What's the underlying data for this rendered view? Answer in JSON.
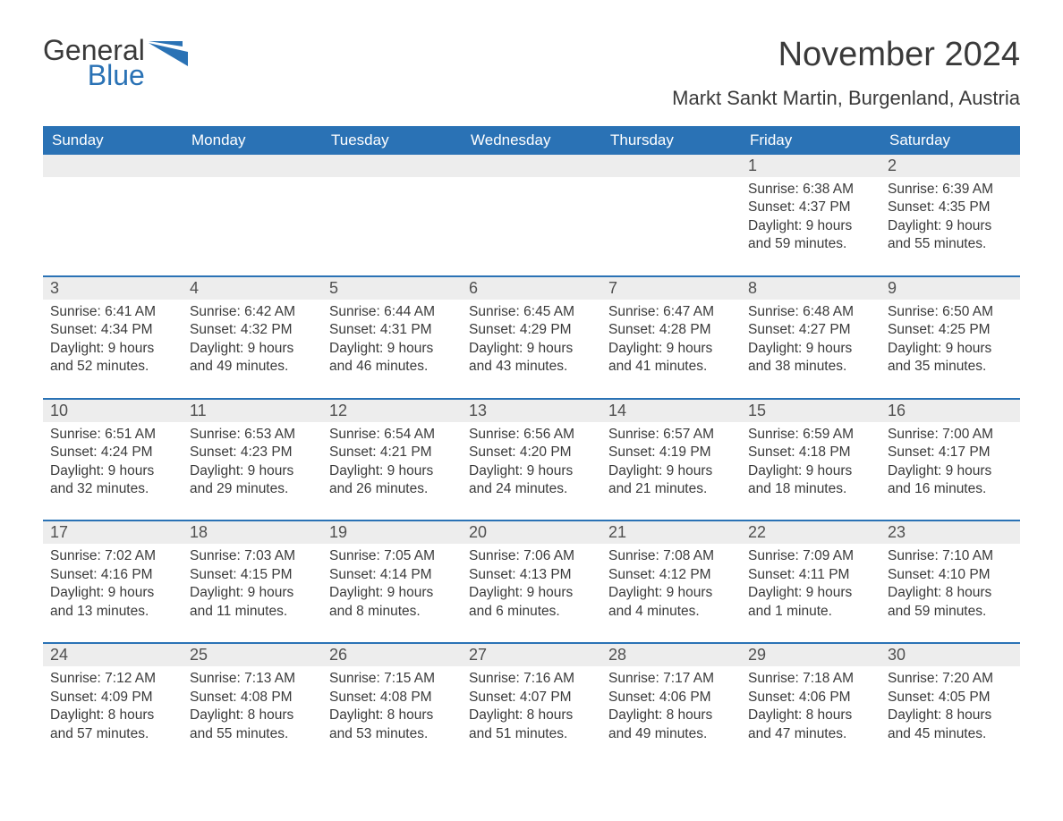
{
  "logo": {
    "text1": "General",
    "text2": "Blue",
    "accent_color": "#2a72b5"
  },
  "title": "November 2024",
  "location": "Markt Sankt Martin, Burgenland, Austria",
  "colors": {
    "header_bg": "#2a72b5",
    "header_text": "#ffffff",
    "daynum_bg": "#ededed",
    "border": "#2a72b5",
    "body_text": "#3a3a3a"
  },
  "weekdays": [
    "Sunday",
    "Monday",
    "Tuesday",
    "Wednesday",
    "Thursday",
    "Friday",
    "Saturday"
  ],
  "weeks": [
    [
      null,
      null,
      null,
      null,
      null,
      {
        "n": "1",
        "sunrise": "Sunrise: 6:38 AM",
        "sunset": "Sunset: 4:37 PM",
        "d1": "Daylight: 9 hours",
        "d2": "and 59 minutes."
      },
      {
        "n": "2",
        "sunrise": "Sunrise: 6:39 AM",
        "sunset": "Sunset: 4:35 PM",
        "d1": "Daylight: 9 hours",
        "d2": "and 55 minutes."
      }
    ],
    [
      {
        "n": "3",
        "sunrise": "Sunrise: 6:41 AM",
        "sunset": "Sunset: 4:34 PM",
        "d1": "Daylight: 9 hours",
        "d2": "and 52 minutes."
      },
      {
        "n": "4",
        "sunrise": "Sunrise: 6:42 AM",
        "sunset": "Sunset: 4:32 PM",
        "d1": "Daylight: 9 hours",
        "d2": "and 49 minutes."
      },
      {
        "n": "5",
        "sunrise": "Sunrise: 6:44 AM",
        "sunset": "Sunset: 4:31 PM",
        "d1": "Daylight: 9 hours",
        "d2": "and 46 minutes."
      },
      {
        "n": "6",
        "sunrise": "Sunrise: 6:45 AM",
        "sunset": "Sunset: 4:29 PM",
        "d1": "Daylight: 9 hours",
        "d2": "and 43 minutes."
      },
      {
        "n": "7",
        "sunrise": "Sunrise: 6:47 AM",
        "sunset": "Sunset: 4:28 PM",
        "d1": "Daylight: 9 hours",
        "d2": "and 41 minutes."
      },
      {
        "n": "8",
        "sunrise": "Sunrise: 6:48 AM",
        "sunset": "Sunset: 4:27 PM",
        "d1": "Daylight: 9 hours",
        "d2": "and 38 minutes."
      },
      {
        "n": "9",
        "sunrise": "Sunrise: 6:50 AM",
        "sunset": "Sunset: 4:25 PM",
        "d1": "Daylight: 9 hours",
        "d2": "and 35 minutes."
      }
    ],
    [
      {
        "n": "10",
        "sunrise": "Sunrise: 6:51 AM",
        "sunset": "Sunset: 4:24 PM",
        "d1": "Daylight: 9 hours",
        "d2": "and 32 minutes."
      },
      {
        "n": "11",
        "sunrise": "Sunrise: 6:53 AM",
        "sunset": "Sunset: 4:23 PM",
        "d1": "Daylight: 9 hours",
        "d2": "and 29 minutes."
      },
      {
        "n": "12",
        "sunrise": "Sunrise: 6:54 AM",
        "sunset": "Sunset: 4:21 PM",
        "d1": "Daylight: 9 hours",
        "d2": "and 26 minutes."
      },
      {
        "n": "13",
        "sunrise": "Sunrise: 6:56 AM",
        "sunset": "Sunset: 4:20 PM",
        "d1": "Daylight: 9 hours",
        "d2": "and 24 minutes."
      },
      {
        "n": "14",
        "sunrise": "Sunrise: 6:57 AM",
        "sunset": "Sunset: 4:19 PM",
        "d1": "Daylight: 9 hours",
        "d2": "and 21 minutes."
      },
      {
        "n": "15",
        "sunrise": "Sunrise: 6:59 AM",
        "sunset": "Sunset: 4:18 PM",
        "d1": "Daylight: 9 hours",
        "d2": "and 18 minutes."
      },
      {
        "n": "16",
        "sunrise": "Sunrise: 7:00 AM",
        "sunset": "Sunset: 4:17 PM",
        "d1": "Daylight: 9 hours",
        "d2": "and 16 minutes."
      }
    ],
    [
      {
        "n": "17",
        "sunrise": "Sunrise: 7:02 AM",
        "sunset": "Sunset: 4:16 PM",
        "d1": "Daylight: 9 hours",
        "d2": "and 13 minutes."
      },
      {
        "n": "18",
        "sunrise": "Sunrise: 7:03 AM",
        "sunset": "Sunset: 4:15 PM",
        "d1": "Daylight: 9 hours",
        "d2": "and 11 minutes."
      },
      {
        "n": "19",
        "sunrise": "Sunrise: 7:05 AM",
        "sunset": "Sunset: 4:14 PM",
        "d1": "Daylight: 9 hours",
        "d2": "and 8 minutes."
      },
      {
        "n": "20",
        "sunrise": "Sunrise: 7:06 AM",
        "sunset": "Sunset: 4:13 PM",
        "d1": "Daylight: 9 hours",
        "d2": "and 6 minutes."
      },
      {
        "n": "21",
        "sunrise": "Sunrise: 7:08 AM",
        "sunset": "Sunset: 4:12 PM",
        "d1": "Daylight: 9 hours",
        "d2": "and 4 minutes."
      },
      {
        "n": "22",
        "sunrise": "Sunrise: 7:09 AM",
        "sunset": "Sunset: 4:11 PM",
        "d1": "Daylight: 9 hours",
        "d2": "and 1 minute."
      },
      {
        "n": "23",
        "sunrise": "Sunrise: 7:10 AM",
        "sunset": "Sunset: 4:10 PM",
        "d1": "Daylight: 8 hours",
        "d2": "and 59 minutes."
      }
    ],
    [
      {
        "n": "24",
        "sunrise": "Sunrise: 7:12 AM",
        "sunset": "Sunset: 4:09 PM",
        "d1": "Daylight: 8 hours",
        "d2": "and 57 minutes."
      },
      {
        "n": "25",
        "sunrise": "Sunrise: 7:13 AM",
        "sunset": "Sunset: 4:08 PM",
        "d1": "Daylight: 8 hours",
        "d2": "and 55 minutes."
      },
      {
        "n": "26",
        "sunrise": "Sunrise: 7:15 AM",
        "sunset": "Sunset: 4:08 PM",
        "d1": "Daylight: 8 hours",
        "d2": "and 53 minutes."
      },
      {
        "n": "27",
        "sunrise": "Sunrise: 7:16 AM",
        "sunset": "Sunset: 4:07 PM",
        "d1": "Daylight: 8 hours",
        "d2": "and 51 minutes."
      },
      {
        "n": "28",
        "sunrise": "Sunrise: 7:17 AM",
        "sunset": "Sunset: 4:06 PM",
        "d1": "Daylight: 8 hours",
        "d2": "and 49 minutes."
      },
      {
        "n": "29",
        "sunrise": "Sunrise: 7:18 AM",
        "sunset": "Sunset: 4:06 PM",
        "d1": "Daylight: 8 hours",
        "d2": "and 47 minutes."
      },
      {
        "n": "30",
        "sunrise": "Sunrise: 7:20 AM",
        "sunset": "Sunset: 4:05 PM",
        "d1": "Daylight: 8 hours",
        "d2": "and 45 minutes."
      }
    ]
  ]
}
